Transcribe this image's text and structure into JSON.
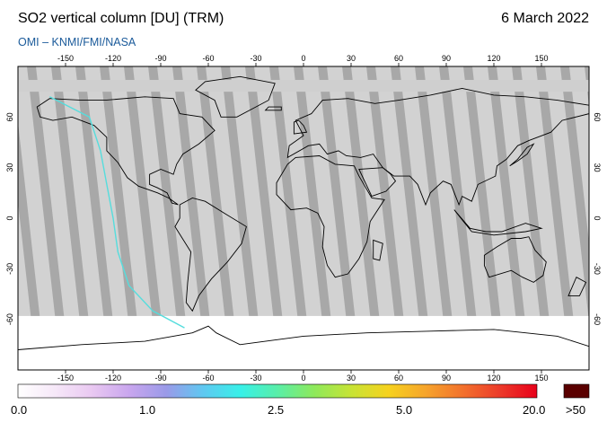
{
  "header": {
    "title": "SO2 vertical column [DU] (TRM)",
    "date": "6 March 2022",
    "source": "OMI  –  KNMI/FMI/NASA"
  },
  "map": {
    "projection": "equirectangular",
    "lon_ticks": [
      "-150",
      "-120",
      "-90",
      "-60",
      "-30",
      "0",
      "30",
      "60",
      "90",
      "120",
      "150"
    ],
    "lat_ticks_left": [
      "60",
      "30",
      "0",
      "-30",
      "-60"
    ],
    "lat_ticks_right": [
      "60",
      "30",
      "0",
      "-30",
      "-60"
    ],
    "colors": {
      "ocean_land_background": "#a8a8a8",
      "orbit_swath": "#d2d2d2",
      "data_fill": "#ffffff",
      "coastline": "#000000",
      "trajectory": "#55dddd"
    }
  },
  "colorbar": {
    "labels": [
      "0.0",
      "1.0",
      "2.5",
      "5.0",
      "20.0",
      ">50"
    ],
    "stops": [
      "#ffffff",
      "#f6e8f8",
      "#e9c8f1",
      "#c9a6ee",
      "#9a9ae8",
      "#5fc8f1",
      "#38f0e8",
      "#59eea8",
      "#8ee95b",
      "#c8e335",
      "#f6d21e",
      "#f6a42c",
      "#f2712c",
      "#ec3a2a",
      "#e8001a"
    ],
    "overflow_color": "#5a0000"
  }
}
